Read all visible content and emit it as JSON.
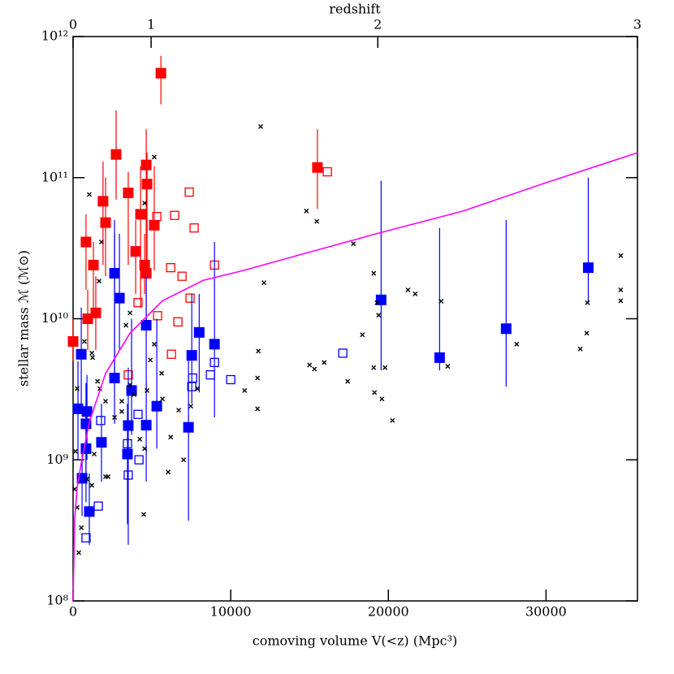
{
  "chart_data": {
    "type": "scatter",
    "xlabel": "comoving volume V(<z) (Mpc³)",
    "ylabel": "stellar mass ℳ (ℳ⊙)",
    "x2label": "redshift",
    "xlim": [
      0,
      35800
    ],
    "ylim": [
      100000000,
      1000000000000
    ],
    "ylog": true,
    "xticks": [
      0,
      10000,
      20000,
      30000
    ],
    "yticks": [
      {
        "value": 100000000,
        "label": "10⁸"
      },
      {
        "value": 1000000000,
        "label": "10⁹"
      },
      {
        "value": 10000000000,
        "label": "10¹⁰"
      },
      {
        "value": 100000000000,
        "label": "10¹¹"
      },
      {
        "value": 1000000000000,
        "label": "10¹²"
      }
    ],
    "x2ticks": [
      {
        "value": 0,
        "label": "0"
      },
      {
        "value": 4950,
        "label": "1"
      },
      {
        "value": 19330,
        "label": "2"
      },
      {
        "value": 35800,
        "label": "3"
      }
    ],
    "series": [
      {
        "marker": "filled-square",
        "color": "#ff0000",
        "x": [
          5570,
          2730,
          1900,
          2060,
          3500,
          4640,
          4690,
          4280,
          5150,
          3970,
          4540,
          4640,
          1290,
          1440,
          930,
          820,
          0,
          15500
        ],
        "values": [
          550000000000,
          146000000000,
          68000000000,
          48000000000,
          78000000000,
          123000000000,
          90000000000,
          55000000000,
          46000000000,
          30000000000,
          24000000000,
          21000000000,
          24000000000,
          11000000000,
          10000000000,
          35000000000,
          6900000000,
          118000000000
        ],
        "ylow": [
          330000000000,
          70000000000,
          24000000000,
          20000000000,
          24000000000,
          30000000000,
          20000000000,
          12000000000,
          22000000000,
          15000000000,
          15000000000,
          9000000000,
          12000000000,
          6000000000,
          6000000000,
          16000000000,
          5000000000,
          60000000000
        ],
        "yhigh": [
          730000000000,
          300000000000,
          130000000000,
          100000000000,
          110000000000,
          220000000000,
          150000000000,
          120000000000,
          120000000000,
          50000000000,
          40000000000,
          50000000000,
          35000000000,
          20000000000,
          16000000000,
          55000000000,
          10000000000,
          220000000000
        ]
      },
      {
        "marker": "open-square",
        "color": "#ff0000",
        "x": [
          16130,
          7370,
          7680,
          5310,
          6440,
          6190,
          6910,
          8970,
          7420,
          5360,
          4120,
          6650,
          6240,
          3500
        ],
        "values": [
          110000000000,
          79000000000,
          44000000000,
          53000000000,
          54000000000,
          23000000000,
          20000000000,
          24000000000,
          14000000000,
          10500000000,
          13000000000,
          9500000000,
          5600000000,
          4000000000
        ]
      },
      {
        "marker": "filled-square",
        "color": "#0000ff",
        "x": [
          2630,
          2940,
          520,
          310,
          880,
          820,
          820,
          570,
          1030,
          2630,
          1800,
          3710,
          3500,
          3450,
          4640,
          4640,
          5310,
          7530,
          8000,
          8970,
          7320,
          19540,
          23250,
          27470,
          32680
        ],
        "values": [
          21000000000,
          14000000000,
          5600000000,
          2300000000,
          2200000000,
          1800000000,
          1200000000,
          740000000,
          430000000,
          3800000000,
          1330000000,
          3100000000,
          1750000000,
          1100000000,
          1760000000,
          9000000000,
          2400000000,
          5500000000,
          8000000000,
          6600000000,
          1700000000,
          13600000000,
          5300000000,
          8500000000,
          23000000000
        ],
        "ylow": [
          4000000000,
          6000000000,
          2200000000,
          1000000000,
          1000000000,
          800000000,
          500000000,
          400000000,
          250000000,
          1800000000,
          700000000,
          1500000000,
          250000000,
          350000000,
          700000000,
          3000000000,
          1200000000,
          2500000000,
          3000000000,
          2000000000,
          370000000,
          4300000000,
          4300000000,
          3300000000,
          13000000000
        ],
        "yhigh": [
          50000000000,
          40000000000,
          12000000000,
          5000000000,
          4000000000,
          3500000000,
          2500000000,
          1200000000,
          800000000,
          40000000000,
          2500000000,
          10000000000,
          4500000000,
          2500000000,
          3500000000,
          20000000000,
          10000000000,
          15000000000,
          15000000000,
          35000000000,
          6000000000,
          95000000000,
          44000000000,
          50000000000,
          100000000000
        ]
      },
      {
        "marker": "open-square",
        "color": "#0000ff",
        "x": [
          820,
          1600,
          1750,
          3500,
          3450,
          4180,
          4120,
          7530,
          7580,
          8710,
          8970,
          10000,
          17110
        ],
        "values": [
          280000000,
          470000000,
          1900000000,
          780000000,
          1300000000,
          1000000000,
          2100000000,
          3300000000,
          3800000000,
          4000000000,
          4900000000,
          3700000000,
          5700000000
        ]
      },
      {
        "marker": "cross",
        "color": "#000000",
        "x": [
          11900,
          14800,
          15460,
          17780,
          19070,
          21240,
          21700,
          19280,
          19380,
          18350,
          23350,
          32630,
          34740,
          34740,
          34740,
          32580,
          32170,
          28140,
          23760,
          19070,
          19790,
          19120,
          19590,
          20260,
          15000,
          15310,
          15930,
          17420,
          11750,
          11700,
          11700,
          12110,
          10880,
          6030,
          4480,
          5150,
          4540,
          1030,
          1650,
          1800,
          1240,
          1550,
          1700,
          2060,
          2630,
          3090,
          3090,
          3610,
          3870,
          4230,
          4540,
          4690,
          4900,
          5620,
          5670,
          6190,
          6700,
          7470,
          7890,
          7010,
          150,
          260,
          360,
          880,
          1190,
          1340,
          2060,
          2220,
          260,
          720,
          1190,
          3350,
          3610,
          5150,
          100,
          520
        ],
        "values": [
          230000000000,
          58000000000,
          49000000000,
          34000000000,
          21000000000,
          16000000000,
          15000000000,
          13000000000,
          10600000000,
          7700000000,
          13300000000,
          13000000000,
          16000000000,
          28000000000,
          13400000000,
          7900000000,
          6100000000,
          6600000000,
          4600000000,
          4500000000,
          4500000000,
          3000000000,
          2700000000,
          1900000000,
          4700000000,
          4400000000,
          4900000000,
          3600000000,
          5900000000,
          3800000000,
          2300000000,
          18000000000,
          3100000000,
          820000000,
          410000000,
          140000000000,
          66000000000,
          76000000000,
          18500000000,
          35000000000,
          5300000000,
          3600000000,
          3200000000,
          2600000000,
          2000000000,
          2600000000,
          2200000000,
          3400000000,
          2900000000,
          1400000000,
          1200000000,
          3100000000,
          5100000000,
          4100000000,
          2700000000,
          1450000000,
          2250000000,
          2400000000,
          3200000000,
          1000000000,
          1150000000,
          460000000,
          220000000,
          730000000,
          660000000,
          1100000000,
          760000000,
          760000000,
          3200000000,
          6900000000,
          5700000000,
          9000000000,
          11000000000,
          6600000000,
          620000000,
          330000000
        ]
      },
      {
        "marker": "line",
        "color": "#ff00ff",
        "x": [
          0,
          100,
          260,
          520,
          1030,
          2060,
          3610,
          5670,
          8250,
          10820,
          14690,
          19590,
          24740,
          30000,
          35800
        ],
        "values": [
          100000000,
          380000000,
          640000000,
          950000000,
          1850000000,
          4100000000,
          7900000000,
          13400000000,
          18700000000,
          22000000000,
          29000000000,
          41000000000,
          58000000000,
          92000000000,
          150000000000
        ]
      }
    ]
  }
}
